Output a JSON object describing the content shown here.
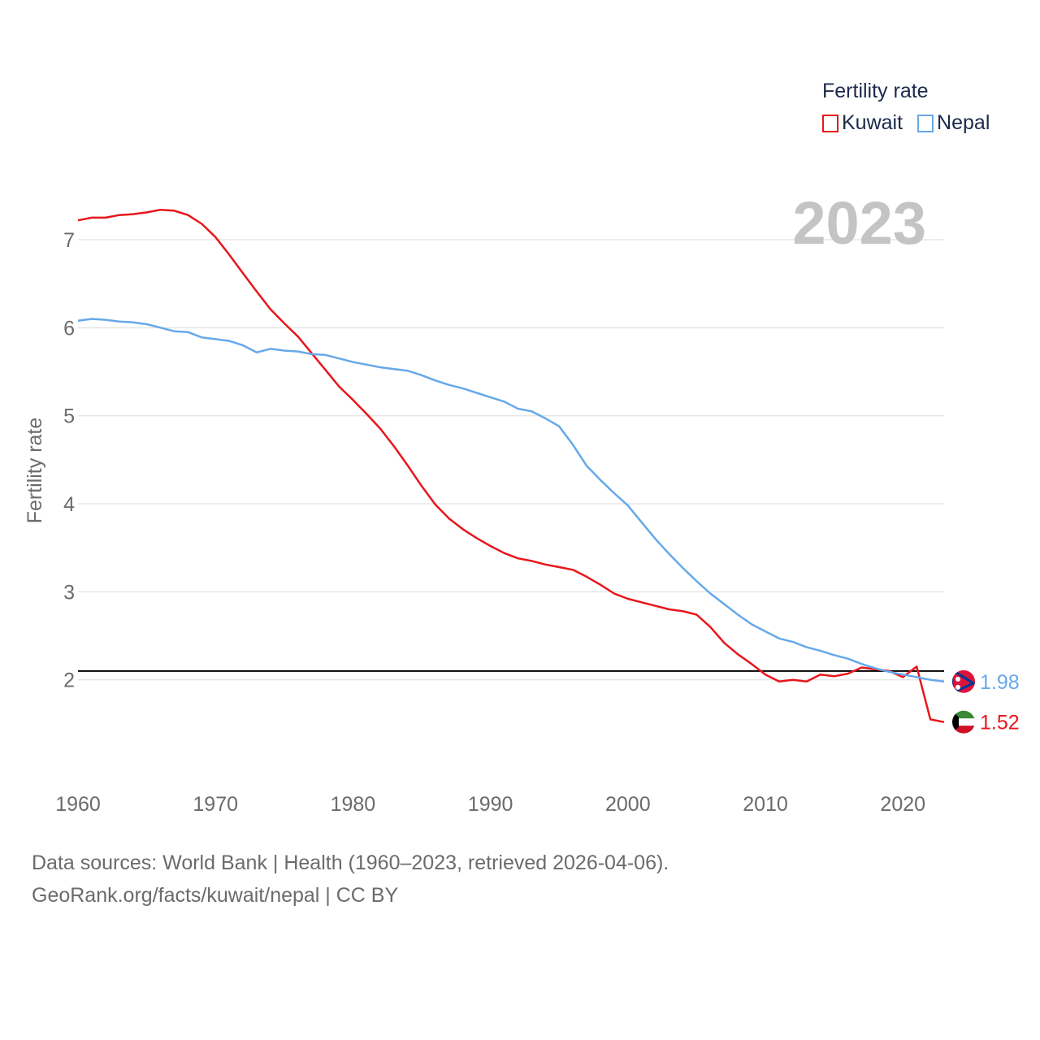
{
  "legend": {
    "title": "Fertility rate",
    "items": [
      {
        "label": "Kuwait",
        "color": "#e8161b"
      },
      {
        "label": "Nepal",
        "color": "#66a9ea"
      }
    ]
  },
  "footer": {
    "line1": "Data sources: World Bank | Health (1960–2023, retrieved 2026-04-06).",
    "line2": "GeoRank.org/facts/kuwait/nepal | CC BY"
  },
  "chart_data": {
    "type": "line",
    "title": "Fertility rate",
    "year_label": "2023",
    "xlabel": "",
    "ylabel": "Fertility rate",
    "xlim": [
      1960,
      2023
    ],
    "ylim": [
      1.0,
      7.6
    ],
    "xticks": [
      1960,
      1970,
      1980,
      1990,
      2000,
      2010,
      2020
    ],
    "yticks": [
      2,
      3,
      4,
      5,
      6,
      7
    ],
    "reference_line": {
      "y": 2.1,
      "color": "#000000"
    },
    "x": [
      1960,
      1961,
      1962,
      1963,
      1964,
      1965,
      1966,
      1967,
      1968,
      1969,
      1970,
      1971,
      1972,
      1973,
      1974,
      1975,
      1976,
      1977,
      1978,
      1979,
      1980,
      1981,
      1982,
      1983,
      1984,
      1985,
      1986,
      1987,
      1988,
      1989,
      1990,
      1991,
      1992,
      1993,
      1994,
      1995,
      1996,
      1997,
      1998,
      1999,
      2000,
      2001,
      2002,
      2003,
      2004,
      2005,
      2006,
      2007,
      2008,
      2009,
      2010,
      2011,
      2012,
      2013,
      2014,
      2015,
      2016,
      2017,
      2018,
      2019,
      2020,
      2021,
      2022,
      2023
    ],
    "series": [
      {
        "name": "Kuwait",
        "color": "#e8161b",
        "end_label": "1.52",
        "values": [
          7.22,
          7.25,
          7.25,
          7.28,
          7.29,
          7.31,
          7.34,
          7.33,
          7.28,
          7.18,
          7.03,
          6.83,
          6.62,
          6.41,
          6.21,
          6.05,
          5.9,
          5.71,
          5.52,
          5.33,
          5.18,
          5.02,
          4.85,
          4.65,
          4.43,
          4.2,
          3.99,
          3.83,
          3.71,
          3.61,
          3.52,
          3.44,
          3.38,
          3.35,
          3.31,
          3.28,
          3.25,
          3.17,
          3.08,
          2.98,
          2.92,
          2.88,
          2.84,
          2.8,
          2.78,
          2.74,
          2.6,
          2.42,
          2.29,
          2.18,
          2.06,
          1.98,
          2.0,
          1.98,
          2.06,
          2.04,
          2.07,
          2.14,
          2.12,
          2.1,
          2.03,
          2.15,
          1.55,
          1.52
        ]
      },
      {
        "name": "Nepal",
        "color": "#66a9ea",
        "end_label": "1.98",
        "values": [
          6.08,
          6.1,
          6.09,
          6.07,
          6.06,
          6.04,
          6.0,
          5.96,
          5.95,
          5.89,
          5.87,
          5.85,
          5.8,
          5.72,
          5.76,
          5.74,
          5.73,
          5.7,
          5.69,
          5.65,
          5.61,
          5.58,
          5.55,
          5.53,
          5.51,
          5.46,
          5.4,
          5.35,
          5.31,
          5.26,
          5.21,
          5.16,
          5.08,
          5.05,
          4.97,
          4.88,
          4.67,
          4.43,
          4.27,
          4.12,
          3.98,
          3.79,
          3.6,
          3.43,
          3.27,
          3.12,
          2.98,
          2.86,
          2.74,
          2.63,
          2.55,
          2.47,
          2.43,
          2.37,
          2.33,
          2.28,
          2.24,
          2.18,
          2.13,
          2.09,
          2.06,
          2.03,
          2.0,
          1.98
        ]
      }
    ]
  }
}
